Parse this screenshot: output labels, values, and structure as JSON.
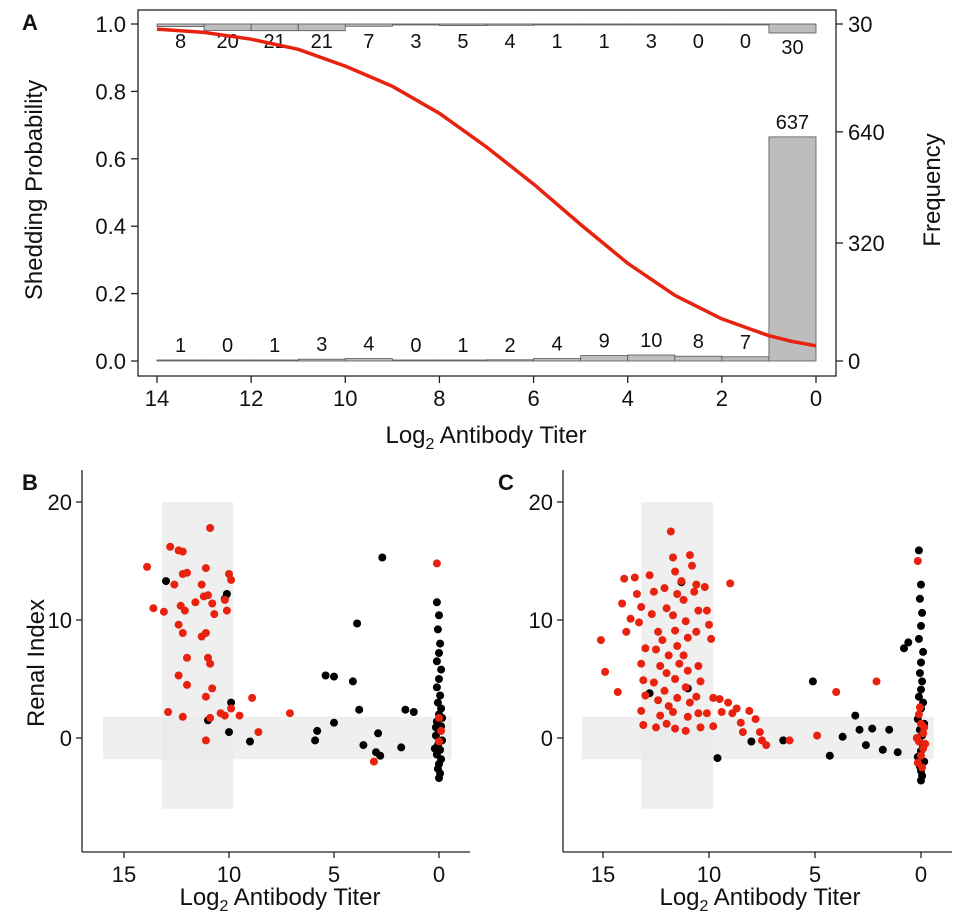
{
  "chart_data": [
    {
      "panel": "A",
      "type": "bar+line",
      "xlabel": "Log2 Antibody Titer",
      "xlabel_main": "Log",
      "xlabel_sub": "2",
      "xlabel_rest": " Antibody Titer",
      "ylabel_left": "Shedding Probability",
      "ylabel_right": "Frequency",
      "xlim": [
        14,
        0
      ],
      "ylim_left": [
        0,
        1
      ],
      "x_ticks": [
        14,
        12,
        10,
        8,
        6,
        4,
        2,
        0
      ],
      "y_ticks_left": [
        "0.0",
        "0.2",
        "0.4",
        "0.6",
        "0.8",
        "1.0"
      ],
      "y_ticks_right": [
        {
          "label": "0",
          "prob": 0.0
        },
        {
          "label": "320",
          "prob": 0.35
        },
        {
          "label": "640",
          "prob": 0.68
        },
        {
          "label": "30",
          "prob": 1.0
        }
      ],
      "bins": [
        {
          "titer": 14,
          "top_count": 8,
          "bottom_count": 1
        },
        {
          "titer": 13,
          "top_count": 20,
          "bottom_count": 0
        },
        {
          "titer": 12,
          "top_count": 21,
          "bottom_count": 1
        },
        {
          "titer": 11,
          "top_count": 21,
          "bottom_count": 3
        },
        {
          "titer": 10,
          "top_count": 7,
          "bottom_count": 4
        },
        {
          "titer": 9,
          "top_count": 3,
          "bottom_count": 0
        },
        {
          "titer": 8,
          "top_count": 5,
          "bottom_count": 1
        },
        {
          "titer": 7,
          "top_count": 4,
          "bottom_count": 2
        },
        {
          "titer": 6,
          "top_count": 1,
          "bottom_count": 4
        },
        {
          "titer": 5,
          "top_count": 1,
          "bottom_count": 9
        },
        {
          "titer": 4,
          "top_count": 3,
          "bottom_count": 10
        },
        {
          "titer": 3,
          "top_count": 0,
          "bottom_count": 8
        },
        {
          "titer": 2,
          "top_count": 0,
          "bottom_count": 7
        },
        {
          "titer": 1,
          "top_count": 30,
          "bottom_count": 637
        }
      ],
      "fit_curve": {
        "color": "#e8220f",
        "points": [
          [
            14,
            0.985
          ],
          [
            13,
            0.975
          ],
          [
            12,
            0.955
          ],
          [
            11,
            0.925
          ],
          [
            10,
            0.875
          ],
          [
            9,
            0.815
          ],
          [
            8,
            0.735
          ],
          [
            7,
            0.635
          ],
          [
            6,
            0.525
          ],
          [
            5,
            0.405
          ],
          [
            4,
            0.29
          ],
          [
            3,
            0.195
          ],
          [
            2,
            0.125
          ],
          [
            1,
            0.075
          ],
          [
            0.5,
            0.058
          ],
          [
            0,
            0.045
          ]
        ]
      },
      "bar_color": "#bdbdbd"
    },
    {
      "panel": "B",
      "type": "scatter",
      "xlabel_main": "Log",
      "xlabel_sub": "2",
      "xlabel_rest": " Antibody Titer",
      "ylabel": "Renal Index",
      "xlim": [
        16,
        -1
      ],
      "ylim": [
        -8,
        22
      ],
      "x_ticks": [
        15,
        10,
        5,
        0
      ],
      "y_ticks": [
        0,
        10,
        20
      ],
      "shade_vertical": {
        "x": [
          13.2,
          9.8
        ],
        "y": [
          -6,
          20
        ]
      },
      "shade_horizontal": {
        "x": [
          16,
          -0.6
        ],
        "y": [
          -1.8,
          1.8
        ]
      },
      "colors": {
        "red": "#e8220f",
        "black": "#000000"
      },
      "red_points": [
        [
          13.9,
          14.5
        ],
        [
          13.6,
          11.0
        ],
        [
          13.1,
          10.7
        ],
        [
          12.8,
          16.2
        ],
        [
          12.4,
          15.9
        ],
        [
          12.2,
          15.8
        ],
        [
          12.6,
          13.0
        ],
        [
          12.2,
          13.9
        ],
        [
          12.0,
          14.0
        ],
        [
          12.3,
          11.2
        ],
        [
          12.1,
          10.8
        ],
        [
          12.4,
          9.6
        ],
        [
          12.2,
          8.9
        ],
        [
          12.0,
          6.8
        ],
        [
          12.4,
          5.3
        ],
        [
          12.0,
          4.5
        ],
        [
          11.6,
          11.5
        ],
        [
          11.2,
          12.0
        ],
        [
          11.0,
          12.1
        ],
        [
          11.3,
          8.6
        ],
        [
          11.1,
          8.9
        ],
        [
          10.9,
          17.8
        ],
        [
          11.1,
          14.4
        ],
        [
          11.3,
          13.0
        ],
        [
          10.8,
          11.4
        ],
        [
          10.7,
          10.5
        ],
        [
          11.0,
          6.8
        ],
        [
          10.9,
          6.3
        ],
        [
          10.8,
          4.2
        ],
        [
          11.1,
          3.5
        ],
        [
          10.9,
          1.7
        ],
        [
          11.1,
          -0.2
        ],
        [
          10.2,
          11.7
        ],
        [
          10.0,
          13.9
        ],
        [
          9.9,
          13.4
        ],
        [
          10.1,
          10.8
        ],
        [
          10.4,
          2.1
        ],
        [
          10.2,
          1.9
        ],
        [
          9.9,
          2.5
        ],
        [
          9.5,
          1.9
        ],
        [
          8.9,
          3.4
        ],
        [
          8.6,
          0.5
        ],
        [
          7.1,
          2.1
        ],
        [
          12.9,
          2.2
        ],
        [
          12.2,
          1.8
        ],
        [
          3.1,
          -2.0
        ],
        [
          0.1,
          14.8
        ],
        [
          0.0,
          1.7
        ],
        [
          0.0,
          -0.3
        ],
        [
          -0.1,
          0.6
        ]
      ],
      "black_points": [
        [
          13.0,
          13.3
        ],
        [
          10.2,
          11.8
        ],
        [
          10.1,
          12.2
        ],
        [
          9.9,
          3.0
        ],
        [
          10.0,
          0.5
        ],
        [
          9.0,
          -0.3
        ],
        [
          11.0,
          1.5
        ],
        [
          5.9,
          -0.2
        ],
        [
          5.8,
          0.6
        ],
        [
          5.4,
          5.3
        ],
        [
          5.0,
          5.2
        ],
        [
          5.0,
          1.3
        ],
        [
          4.1,
          4.8
        ],
        [
          3.8,
          2.4
        ],
        [
          3.9,
          9.7
        ],
        [
          3.6,
          -0.6
        ],
        [
          3.0,
          -1.2
        ],
        [
          2.9,
          0.4
        ],
        [
          2.8,
          -1.5
        ],
        [
          2.7,
          15.3
        ],
        [
          1.8,
          -0.8
        ],
        [
          1.6,
          2.4
        ],
        [
          1.2,
          2.2
        ],
        [
          0.1,
          11.5
        ],
        [
          0.0,
          10.4
        ],
        [
          0.05,
          9.2
        ],
        [
          -0.05,
          8.0
        ],
        [
          0.0,
          7.2
        ],
        [
          0.1,
          6.5
        ],
        [
          -0.1,
          5.8
        ],
        [
          0.0,
          5.0
        ],
        [
          0.1,
          4.3
        ],
        [
          -0.05,
          3.6
        ],
        [
          0.05,
          3.0
        ],
        [
          -0.1,
          2.5
        ],
        [
          0.0,
          2.0
        ],
        [
          0.1,
          1.4
        ],
        [
          -0.1,
          1.0
        ],
        [
          0.0,
          0.6
        ],
        [
          0.15,
          0.2
        ],
        [
          -0.15,
          -0.2
        ],
        [
          0.05,
          -0.6
        ],
        [
          -0.05,
          -1.0
        ],
        [
          0.1,
          -1.4
        ],
        [
          -0.1,
          -1.8
        ],
        [
          0.0,
          -2.2
        ],
        [
          0.05,
          -2.6
        ],
        [
          -0.05,
          -3.0
        ],
        [
          0.0,
          -3.4
        ],
        [
          0.15,
          0.9
        ],
        [
          -0.15,
          1.7
        ],
        [
          0.2,
          -0.9
        ]
      ]
    },
    {
      "panel": "C",
      "type": "scatter",
      "xlabel_main": "Log",
      "xlabel_sub": "2",
      "xlabel_rest": " Antibody Titer",
      "ylabel": "",
      "xlim": [
        16,
        -1
      ],
      "ylim": [
        -8,
        22
      ],
      "x_ticks": [
        15,
        10,
        5,
        0
      ],
      "y_ticks": [
        0,
        10,
        20
      ],
      "shade_vertical": {
        "x": [
          13.2,
          9.8
        ],
        "y": [
          -6,
          20
        ]
      },
      "shade_horizontal": {
        "x": [
          16,
          -0.6
        ],
        "y": [
          -1.8,
          1.8
        ]
      },
      "colors": {
        "red": "#e8220f",
        "black": "#000000"
      },
      "red_points": [
        [
          15.1,
          8.3
        ],
        [
          14.9,
          5.6
        ],
        [
          14.3,
          3.9
        ],
        [
          14.0,
          13.5
        ],
        [
          14.1,
          11.4
        ],
        [
          13.7,
          10.1
        ],
        [
          13.9,
          9.0
        ],
        [
          13.5,
          13.6
        ],
        [
          13.4,
          12.2
        ],
        [
          13.2,
          11.1
        ],
        [
          13.3,
          9.8
        ],
        [
          13.0,
          7.6
        ],
        [
          13.2,
          6.3
        ],
        [
          13.1,
          4.9
        ],
        [
          13.0,
          3.6
        ],
        [
          13.2,
          2.3
        ],
        [
          13.1,
          1.1
        ],
        [
          12.8,
          13.8
        ],
        [
          12.6,
          12.4
        ],
        [
          12.7,
          10.5
        ],
        [
          12.4,
          9.0
        ],
        [
          12.5,
          7.5
        ],
        [
          12.3,
          6.1
        ],
        [
          12.6,
          4.7
        ],
        [
          12.4,
          3.2
        ],
        [
          12.3,
          1.9
        ],
        [
          12.5,
          0.9
        ],
        [
          12.1,
          12.7
        ],
        [
          12.0,
          11.0
        ],
        [
          12.2,
          8.3
        ],
        [
          11.9,
          7.0
        ],
        [
          12.0,
          5.5
        ],
        [
          12.1,
          4.0
        ],
        [
          11.9,
          2.7
        ],
        [
          12.0,
          1.2
        ],
        [
          11.8,
          17.5
        ],
        [
          11.7,
          15.3
        ],
        [
          11.6,
          14.1
        ],
        [
          11.5,
          12.2
        ],
        [
          11.7,
          10.4
        ],
        [
          11.6,
          9.1
        ],
        [
          11.5,
          7.8
        ],
        [
          11.4,
          6.3
        ],
        [
          11.6,
          5.0
        ],
        [
          11.5,
          3.4
        ],
        [
          11.7,
          2.2
        ],
        [
          11.6,
          0.8
        ],
        [
          11.3,
          13.3
        ],
        [
          11.2,
          11.7
        ],
        [
          11.1,
          9.9
        ],
        [
          11.0,
          8.5
        ],
        [
          11.2,
          7.0
        ],
        [
          11.0,
          5.7
        ],
        [
          11.1,
          4.3
        ],
        [
          10.9,
          3.0
        ],
        [
          11.0,
          1.8
        ],
        [
          11.1,
          0.6
        ],
        [
          10.9,
          15.5
        ],
        [
          10.8,
          14.6
        ],
        [
          10.6,
          13.0
        ],
        [
          10.7,
          12.4
        ],
        [
          10.5,
          10.8
        ],
        [
          10.6,
          9.0
        ],
        [
          10.5,
          6.1
        ],
        [
          10.4,
          4.8
        ],
        [
          10.6,
          3.5
        ],
        [
          10.5,
          2.1
        ],
        [
          10.4,
          0.9
        ],
        [
          10.1,
          10.8
        ],
        [
          10.0,
          9.6
        ],
        [
          9.9,
          8.4
        ],
        [
          10.2,
          12.8
        ],
        [
          9.8,
          3.4
        ],
        [
          10.1,
          2.1
        ],
        [
          9.8,
          1.0
        ],
        [
          9.5,
          3.3
        ],
        [
          9.4,
          2.2
        ],
        [
          9.0,
          13.1
        ],
        [
          9.1,
          3.0
        ],
        [
          8.9,
          2.1
        ],
        [
          8.7,
          2.5
        ],
        [
          8.5,
          1.3
        ],
        [
          8.4,
          0.5
        ],
        [
          8.1,
          2.3
        ],
        [
          7.8,
          1.6
        ],
        [
          7.6,
          0.5
        ],
        [
          7.5,
          -0.2
        ],
        [
          7.3,
          -0.6
        ],
        [
          6.2,
          -0.2
        ],
        [
          4.9,
          0.2
        ],
        [
          4.0,
          3.9
        ],
        [
          2.1,
          4.8
        ],
        [
          0.15,
          15.0
        ],
        [
          0.1,
          2.0
        ],
        [
          0.0,
          1.2
        ],
        [
          -0.1,
          0.4
        ],
        [
          0.1,
          -0.3
        ],
        [
          -0.1,
          -0.9
        ],
        [
          0.0,
          -1.5
        ],
        [
          0.15,
          -2.1
        ],
        [
          -0.15,
          0.9
        ],
        [
          0.2,
          0.0
        ],
        [
          -0.2,
          -0.5
        ],
        [
          0.05,
          2.6
        ],
        [
          -0.05,
          -2.5
        ]
      ],
      "black_points": [
        [
          12.8,
          3.8
        ],
        [
          11.3,
          13.2
        ],
        [
          11.0,
          4.2
        ],
        [
          9.6,
          -1.7
        ],
        [
          8.0,
          -0.3
        ],
        [
          6.5,
          -0.2
        ],
        [
          5.1,
          4.8
        ],
        [
          4.3,
          -1.5
        ],
        [
          3.7,
          0.1
        ],
        [
          3.1,
          1.9
        ],
        [
          2.9,
          0.7
        ],
        [
          2.6,
          -0.6
        ],
        [
          2.3,
          0.8
        ],
        [
          1.8,
          -1.0
        ],
        [
          1.5,
          0.7
        ],
        [
          1.1,
          -1.2
        ],
        [
          0.8,
          7.6
        ],
        [
          0.6,
          8.1
        ],
        [
          0.1,
          15.9
        ],
        [
          0.0,
          13.0
        ],
        [
          0.05,
          11.8
        ],
        [
          -0.05,
          10.6
        ],
        [
          0.0,
          9.5
        ],
        [
          0.1,
          8.4
        ],
        [
          -0.1,
          7.3
        ],
        [
          0.0,
          6.4
        ],
        [
          0.05,
          5.5
        ],
        [
          -0.05,
          4.8
        ],
        [
          0.0,
          4.1
        ],
        [
          0.1,
          3.5
        ],
        [
          -0.1,
          3.0
        ],
        [
          0.0,
          2.5
        ],
        [
          0.15,
          1.6
        ],
        [
          -0.15,
          1.2
        ],
        [
          0.05,
          0.7
        ],
        [
          -0.05,
          0.2
        ],
        [
          0.1,
          -0.2
        ],
        [
          -0.1,
          -0.7
        ],
        [
          0.0,
          -1.1
        ],
        [
          0.15,
          -1.6
        ],
        [
          -0.15,
          -2.0
        ],
        [
          0.05,
          -2.4
        ],
        [
          0.0,
          -2.8
        ],
        [
          -0.05,
          -3.2
        ],
        [
          0.0,
          -3.6
        ]
      ]
    }
  ]
}
